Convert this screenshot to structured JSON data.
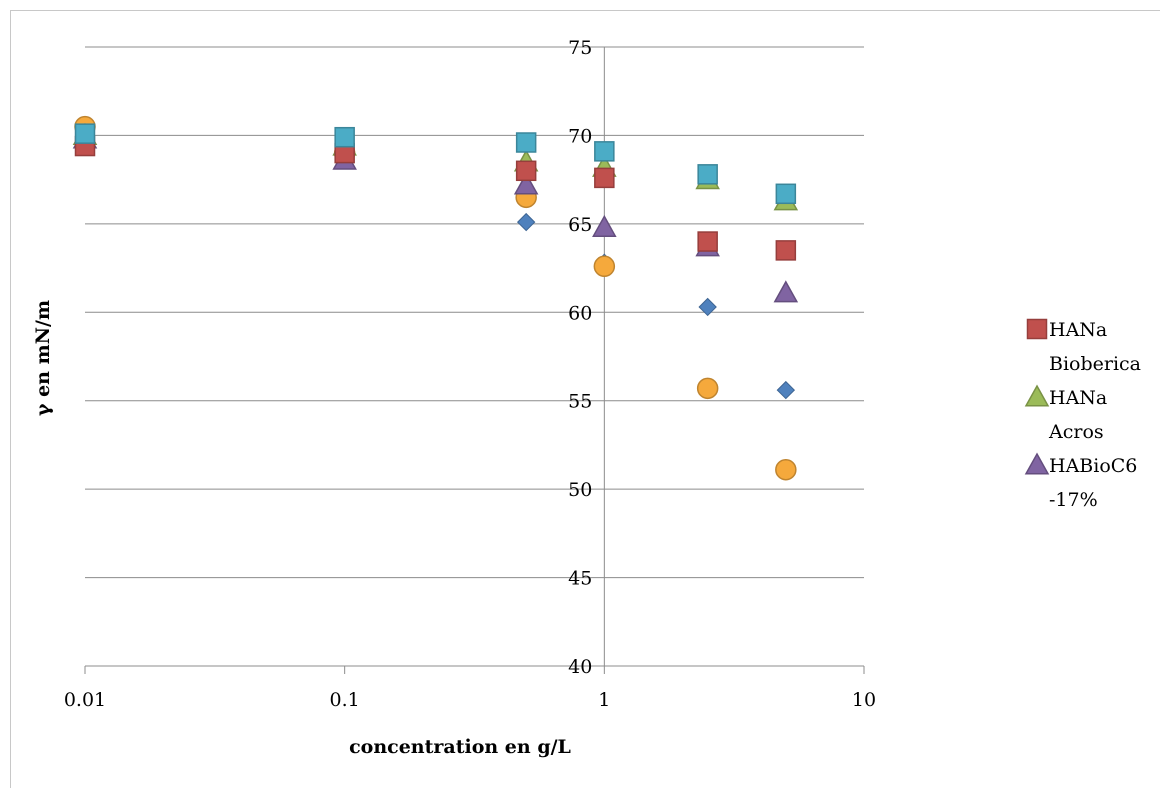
{
  "chart_data": {
    "type": "scatter",
    "title": "",
    "xlabel": "concentration en g/L",
    "ylabel": "γ en mN/m",
    "x_scale": "log",
    "xlim": [
      0.01,
      10
    ],
    "ylim": [
      40,
      75
    ],
    "x_ticks": [
      "0.01",
      "0.1",
      "1",
      "10"
    ],
    "y_ticks": [
      "40",
      "45",
      "50",
      "55",
      "60",
      "65",
      "70",
      "75"
    ],
    "grid": "horizontal",
    "legend_position": "right",
    "series": [
      {
        "key": "s1",
        "color": "#4f81bd",
        "marker": "diamond",
        "points": [
          [
            0.01,
            70.2
          ],
          [
            0.1,
            69.6
          ],
          [
            0.5,
            65.1
          ],
          [
            1,
            62.8
          ],
          [
            2.5,
            60.3
          ],
          [
            5,
            55.6
          ]
        ]
      },
      {
        "key": "s2",
        "color": "#f5a93c",
        "marker": "circle",
        "points": [
          [
            0.01,
            70.5
          ],
          [
            0.1,
            69.0
          ],
          [
            0.5,
            66.5
          ],
          [
            1,
            62.6
          ],
          [
            2.5,
            55.7
          ],
          [
            5,
            51.1
          ]
        ]
      },
      {
        "name": "HABioC6 -17%",
        "legend_lines": [
          "HABioC6",
          "-17%"
        ],
        "color": "#8064a2",
        "marker": "triangle",
        "points": [
          [
            0.01,
            69.8
          ],
          [
            0.1,
            68.6
          ],
          [
            0.5,
            67.2
          ],
          [
            1,
            64.8
          ],
          [
            2.5,
            63.7
          ],
          [
            5,
            61.1
          ]
        ]
      },
      {
        "name": "HANa Acros",
        "legend_lines": [
          "HANa",
          "Acros"
        ],
        "color": "#9bbb59",
        "marker": "triangle",
        "points": [
          [
            0.01,
            70.0
          ],
          [
            0.1,
            69.4
          ],
          [
            0.5,
            68.5
          ],
          [
            1,
            68.2
          ],
          [
            2.5,
            67.5
          ],
          [
            5,
            66.3
          ]
        ]
      },
      {
        "name": "HANa Bioberica",
        "legend_lines": [
          "HANa",
          "Bioberica"
        ],
        "color": "#c0504d",
        "marker": "square",
        "points": [
          [
            0.01,
            69.4
          ],
          [
            0.1,
            69.0
          ],
          [
            0.5,
            68.0
          ],
          [
            1,
            67.6
          ],
          [
            2.5,
            64.0
          ],
          [
            5,
            63.5
          ]
        ]
      },
      {
        "key": "s6",
        "color": "#4bacc6",
        "marker": "square",
        "points": [
          [
            0.01,
            70.1
          ],
          [
            0.1,
            69.9
          ],
          [
            0.5,
            69.6
          ],
          [
            1,
            69.1
          ],
          [
            2.5,
            67.8
          ],
          [
            5,
            66.7
          ]
        ]
      }
    ],
    "legend": [
      {
        "series": "HANa Bioberica",
        "lines": [
          "HANa",
          "Bioberica"
        ],
        "marker": "square",
        "color": "#c0504d"
      },
      {
        "series": "HANa Acros",
        "lines": [
          "HANa",
          "Acros"
        ],
        "marker": "triangle",
        "color": "#9bbb59"
      },
      {
        "series": "HABioC6 -17%",
        "lines": [
          "HABioC6",
          "-17%"
        ],
        "marker": "triangle",
        "color": "#8064a2"
      }
    ]
  }
}
